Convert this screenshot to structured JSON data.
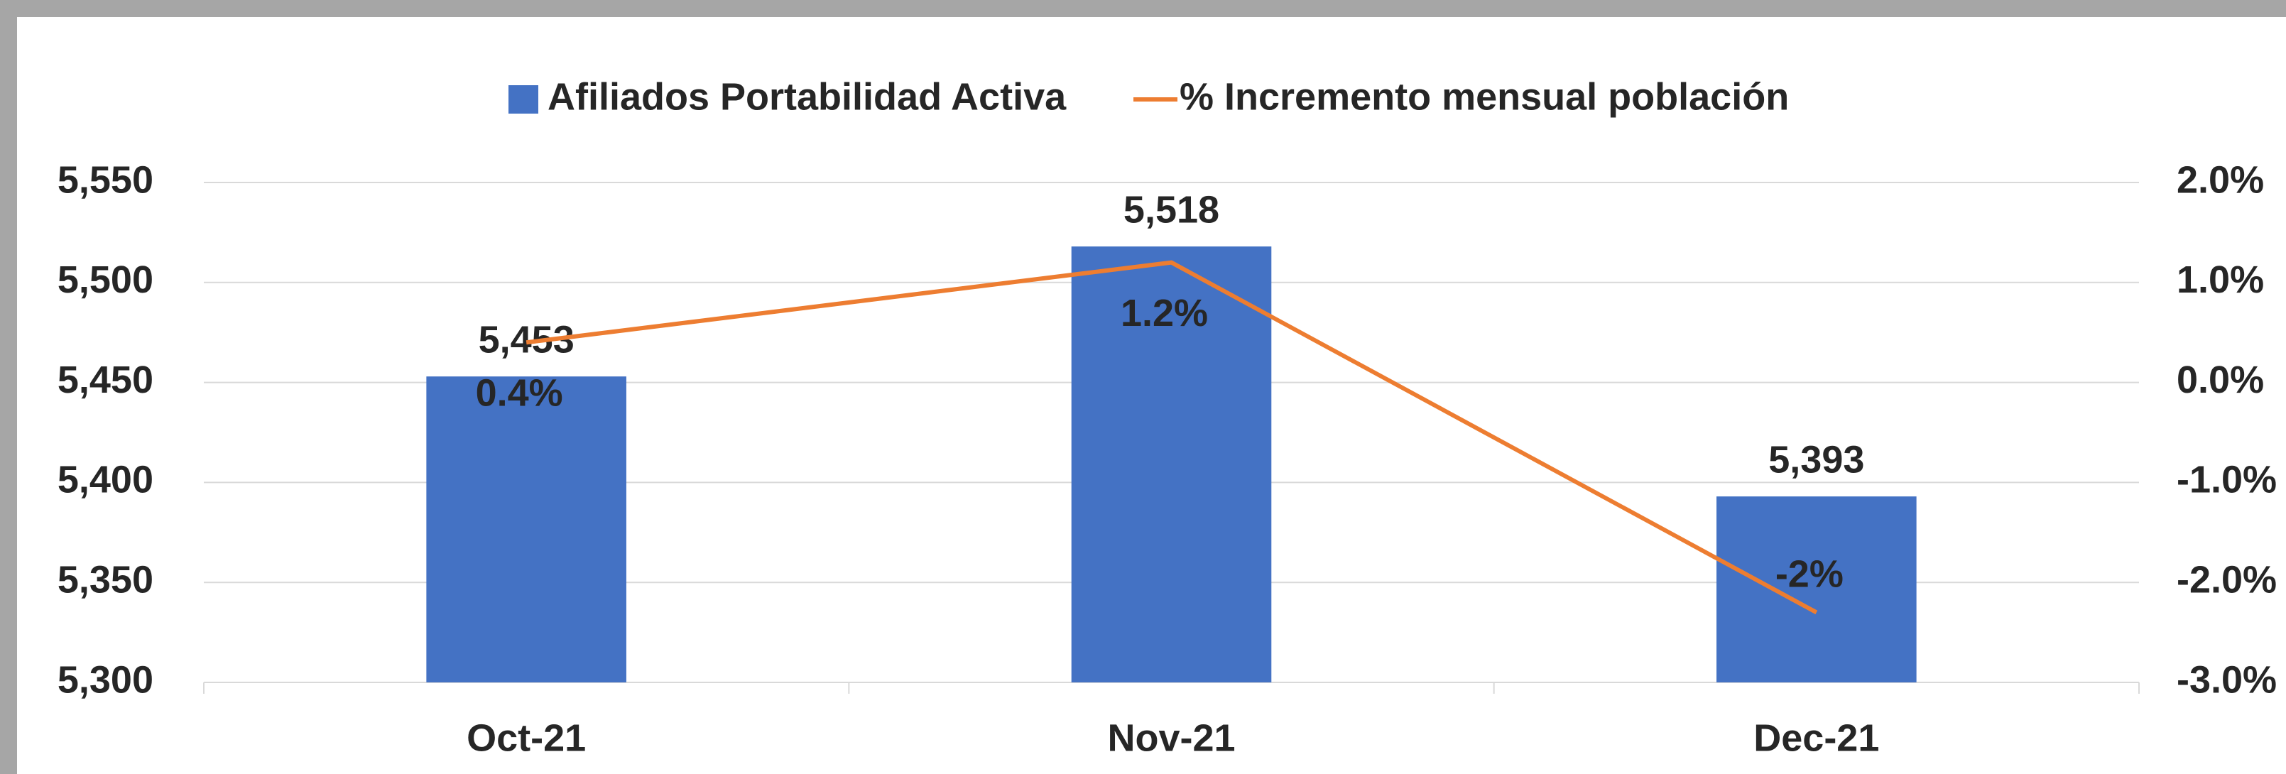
{
  "chart_data": {
    "type": "bar",
    "categories": [
      "Oct-21",
      "Nov-21",
      "Dec-21"
    ],
    "series": [
      {
        "name": "Afiliados Portabilidad Activa",
        "type": "bar",
        "color": "#4472c4",
        "values": [
          5453,
          5518,
          5393
        ],
        "value_labels": [
          "5,453",
          "5,518",
          "5,393"
        ]
      },
      {
        "name": "% Incremento mensual población",
        "type": "line",
        "axis": "y2",
        "color": "#ed7d31",
        "values": [
          0.4,
          1.2,
          -2.3
        ],
        "value_labels": [
          "0.4%",
          "1.2%",
          "-2%"
        ]
      }
    ],
    "ylim": [
      5300,
      5550
    ],
    "yticks": [
      {
        "value": 5300,
        "label": "5,300"
      },
      {
        "value": 5350,
        "label": "5,350"
      },
      {
        "value": 5400,
        "label": "5,400"
      },
      {
        "value": 5450,
        "label": "5,450"
      },
      {
        "value": 5500,
        "label": "5,500"
      },
      {
        "value": 5550,
        "label": "5,550"
      }
    ],
    "y2lim": [
      -3,
      2
    ],
    "y2ticks": [
      {
        "value": -3,
        "label": "-3.0%"
      },
      {
        "value": -2,
        "label": "-2.0%"
      },
      {
        "value": -1,
        "label": "-1.0%"
      },
      {
        "value": 0,
        "label": "0.0%"
      },
      {
        "value": 1,
        "label": "1.0%"
      },
      {
        "value": 2,
        "label": "2.0%"
      }
    ],
    "grid": true,
    "legend": "top"
  }
}
